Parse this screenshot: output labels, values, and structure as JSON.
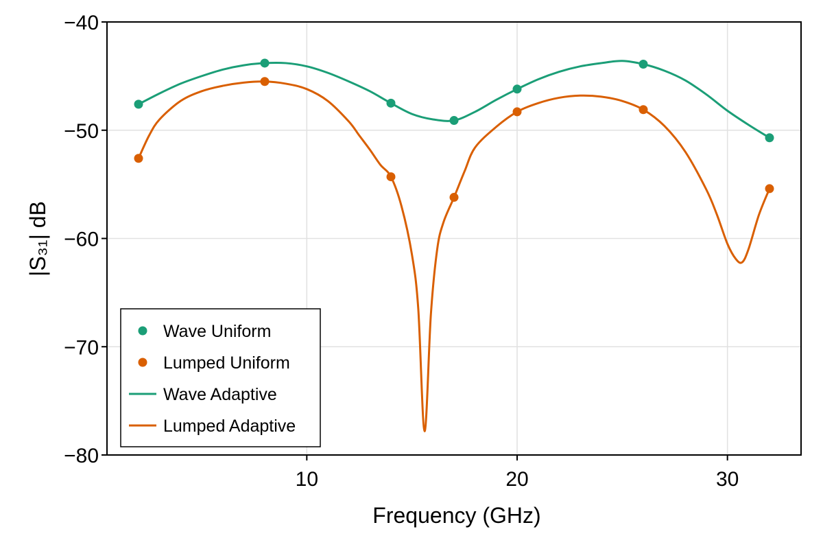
{
  "chart_data": {
    "type": "line",
    "xlabel": "Frequency (GHz)",
    "ylabel": "|S₃₁| dB",
    "xlim": [
      0.5,
      33.5
    ],
    "ylim": [
      -80,
      -40
    ],
    "x_ticks": [
      10,
      20,
      30
    ],
    "y_ticks": [
      -80,
      -70,
      -60,
      -50,
      -40
    ],
    "x_tick_labels": [
      "10",
      "20",
      "30"
    ],
    "y_tick_labels": [
      "−80",
      "−70",
      "−60",
      "−50",
      "−40"
    ],
    "grid": true,
    "legend_position": "bottom-left",
    "series": [
      {
        "name": "Wave Uniform",
        "kind": "scatter",
        "color": "#1b9e77",
        "x": [
          2,
          8,
          14,
          17,
          20,
          26,
          32
        ],
        "y": [
          -47.6,
          -43.8,
          -47.5,
          -49.1,
          -46.2,
          -43.9,
          -50.7
        ]
      },
      {
        "name": "Lumped Uniform",
        "kind": "scatter",
        "color": "#d95f02",
        "x": [
          2,
          8,
          14,
          17,
          20,
          26,
          32
        ],
        "y": [
          -52.6,
          -45.5,
          -54.3,
          -56.2,
          -48.3,
          -48.1,
          -55.4
        ]
      },
      {
        "name": "Wave Adaptive",
        "kind": "line",
        "color": "#1b9e77",
        "x": [
          2,
          3,
          4,
          5,
          6,
          7,
          8,
          9,
          10,
          11,
          12,
          13,
          14,
          15,
          16,
          17,
          18,
          19,
          20,
          21,
          22,
          23,
          24,
          25,
          26,
          27,
          28,
          29,
          30,
          31,
          32
        ],
        "y": [
          -47.6,
          -46.6,
          -45.7,
          -45.0,
          -44.4,
          -44.0,
          -43.8,
          -43.8,
          -44.1,
          -44.7,
          -45.5,
          -46.4,
          -47.5,
          -48.5,
          -49.0,
          -49.1,
          -48.3,
          -47.2,
          -46.2,
          -45.3,
          -44.6,
          -44.1,
          -43.8,
          -43.6,
          -43.9,
          -44.5,
          -45.4,
          -46.7,
          -48.2,
          -49.5,
          -50.7
        ]
      },
      {
        "name": "Lumped Adaptive",
        "kind": "line",
        "color": "#d95f02",
        "x": [
          2,
          2.5,
          3,
          4,
          5,
          6,
          7,
          8,
          9,
          10,
          11,
          12,
          12.5,
          13,
          13.5,
          14,
          14.5,
          15,
          15.3,
          15.6,
          15.9,
          16.2,
          16.5,
          17,
          17.5,
          18,
          19,
          20,
          21,
          22,
          23,
          24,
          25,
          26,
          27,
          28,
          29,
          29.5,
          30,
          30.4,
          30.7,
          31,
          31.5,
          32
        ],
        "y": [
          -52.6,
          -50.5,
          -49.0,
          -47.3,
          -46.4,
          -45.9,
          -45.6,
          -45.5,
          -45.7,
          -46.2,
          -47.3,
          -49.2,
          -50.5,
          -51.8,
          -53.2,
          -54.3,
          -57.0,
          -61.5,
          -66.5,
          -77.8,
          -67.0,
          -61.0,
          -58.5,
          -56.2,
          -53.8,
          -51.6,
          -49.7,
          -48.3,
          -47.5,
          -47.0,
          -46.8,
          -46.9,
          -47.3,
          -48.1,
          -49.6,
          -52.0,
          -55.5,
          -57.8,
          -60.5,
          -61.9,
          -62.2,
          -61.0,
          -57.8,
          -55.4
        ]
      }
    ]
  }
}
